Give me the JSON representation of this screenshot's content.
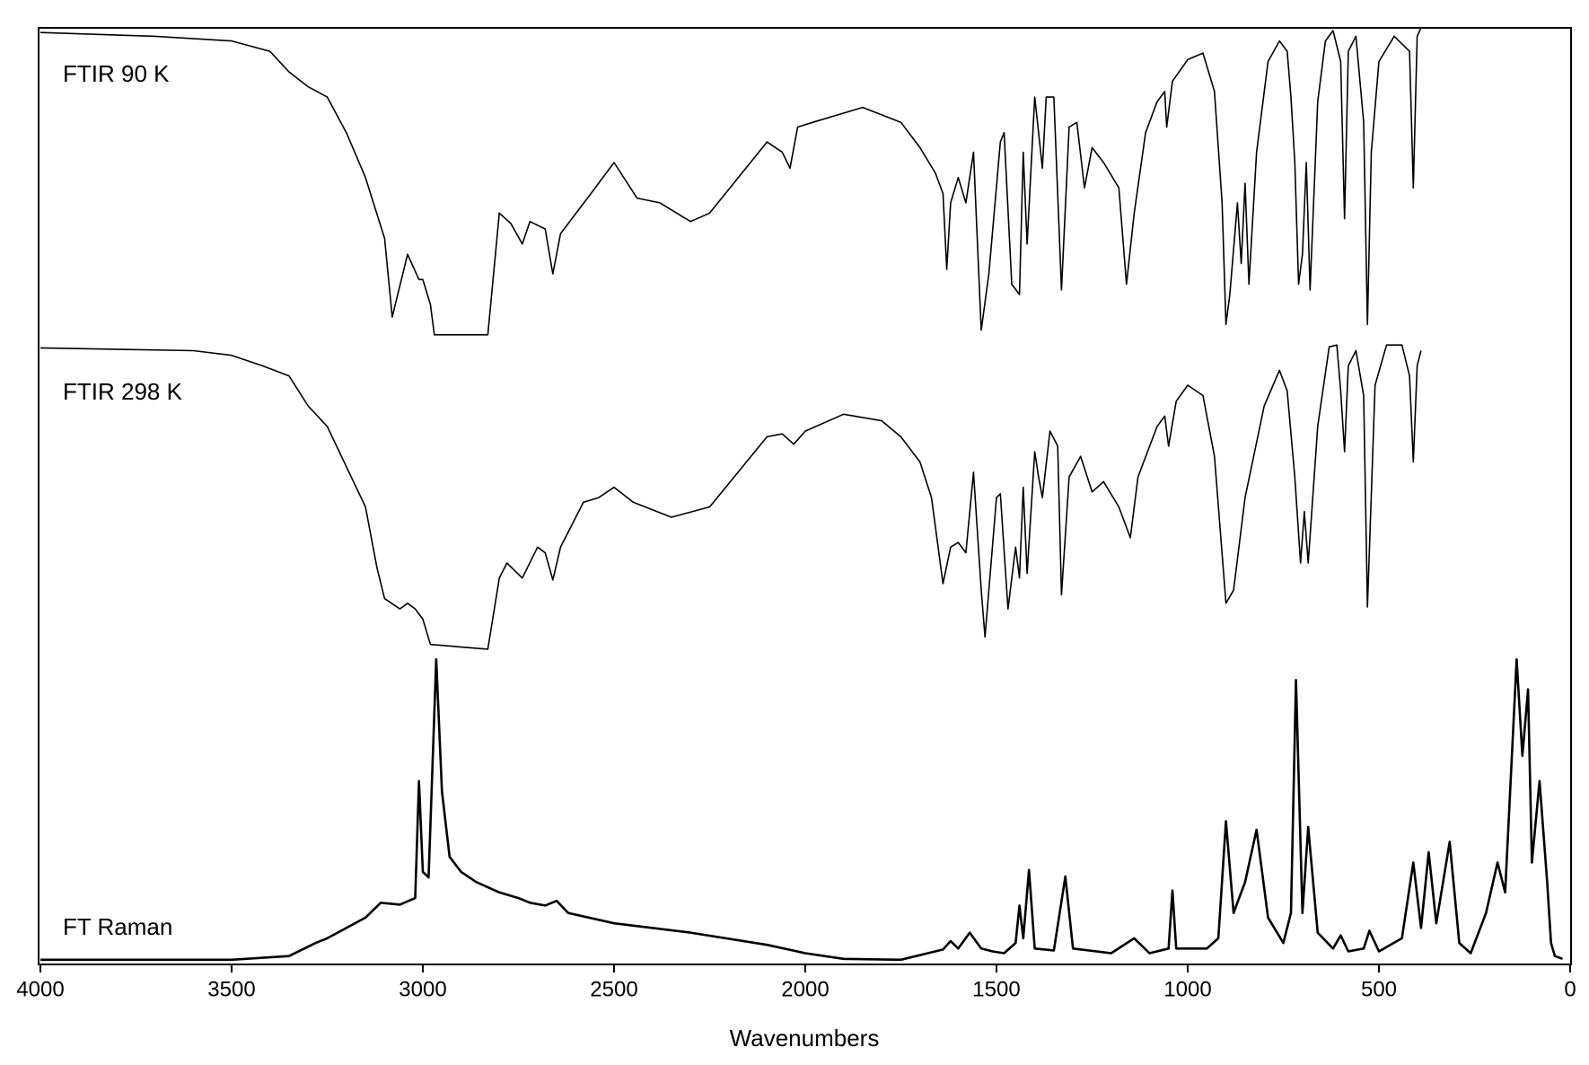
{
  "chart_data": {
    "type": "line",
    "x_label": "Wavenumbers",
    "xlim": [
      4000,
      0
    ],
    "xticks": [
      4000,
      3500,
      3000,
      2500,
      2000,
      1500,
      1000,
      500,
      0
    ],
    "series": [
      {
        "name": "FTIR 90 K",
        "color": "#000000",
        "x": [
          4000,
          3700,
          3500,
          3400,
          3350,
          3300,
          3250,
          3200,
          3150,
          3100,
          3080,
          3040,
          3010,
          3000,
          2980,
          2970,
          2830,
          2800,
          2770,
          2740,
          2720,
          2680,
          2660,
          2640,
          2560,
          2500,
          2440,
          2380,
          2300,
          2250,
          2100,
          2060,
          2040,
          2020,
          1980,
          1850,
          1750,
          1700,
          1660,
          1640,
          1630,
          1620,
          1600,
          1580,
          1560,
          1540,
          1520,
          1490,
          1480,
          1460,
          1440,
          1430,
          1420,
          1400,
          1390,
          1380,
          1370,
          1350,
          1330,
          1310,
          1290,
          1270,
          1250,
          1220,
          1180,
          1160,
          1140,
          1110,
          1080,
          1060,
          1055,
          1040,
          1000,
          960,
          930,
          910,
          900,
          890,
          870,
          860,
          850,
          840,
          820,
          790,
          760,
          740,
          730,
          720,
          710,
          700,
          690,
          680,
          660,
          640,
          620,
          600,
          590,
          580,
          560,
          540,
          530,
          520,
          500,
          460,
          420,
          410,
          400,
          390
        ],
        "values": [
          99.5,
          99.1,
          98.6,
          97.5,
          95.3,
          93.7,
          92.6,
          88.8,
          84.0,
          77.5,
          69.1,
          75.8,
          73.1,
          73.1,
          70.4,
          67.2,
          67.2,
          80.2,
          79.1,
          76.9,
          79.3,
          78.5,
          73.7,
          78.0,
          82.3,
          85.6,
          81.8,
          81.3,
          79.3,
          80.2,
          87.8,
          86.7,
          85.0,
          89.4,
          89.9,
          91.5,
          89.9,
          87.2,
          84.5,
          82.3,
          74.2,
          81.3,
          84.0,
          81.3,
          86.7,
          67.7,
          73.7,
          87.8,
          88.8,
          72.6,
          71.5,
          86.7,
          76.9,
          92.6,
          88.8,
          85.0,
          92.6,
          92.6,
          72.0,
          89.4,
          89.9,
          82.9,
          87.2,
          85.6,
          82.9,
          72.6,
          80.2,
          88.8,
          92.1,
          93.2,
          89.4,
          94.3,
          96.6,
          97.3,
          93.2,
          81.3,
          68.3,
          71.5,
          81.3,
          74.8,
          83.4,
          72.6,
          86.7,
          96.4,
          98.6,
          97.5,
          92.6,
          85.6,
          72.6,
          75.8,
          85.6,
          72.0,
          92.1,
          98.6,
          99.7,
          96.4,
          79.6,
          97.5,
          99.1,
          89.9,
          68.3,
          86.7,
          96.4,
          99.1,
          97.5,
          82.9,
          99.1,
          100
        ]
      },
      {
        "name": "FTIR 298 K",
        "color": "#000000",
        "x": [
          4000,
          3600,
          3500,
          3420,
          3350,
          3300,
          3250,
          3200,
          3150,
          3120,
          3100,
          3060,
          3040,
          3020,
          3000,
          2980,
          2830,
          2800,
          2780,
          2740,
          2700,
          2680,
          2660,
          2640,
          2580,
          2540,
          2500,
          2450,
          2350,
          2250,
          2100,
          2060,
          2030,
          2000,
          1900,
          1800,
          1750,
          1700,
          1670,
          1640,
          1620,
          1600,
          1580,
          1560,
          1540,
          1530,
          1500,
          1490,
          1470,
          1450,
          1440,
          1430,
          1420,
          1400,
          1390,
          1380,
          1360,
          1340,
          1330,
          1310,
          1280,
          1250,
          1220,
          1180,
          1150,
          1130,
          1080,
          1060,
          1050,
          1030,
          1000,
          960,
          930,
          900,
          880,
          850,
          800,
          760,
          740,
          720,
          705,
          695,
          685,
          660,
          630,
          610,
          600,
          590,
          580,
          560,
          540,
          530,
          510,
          480,
          440,
          420,
          410,
          400,
          390
        ],
        "values": [
          65.8,
          65.5,
          65.0,
          63.9,
          62.8,
          59.6,
          57.4,
          53.1,
          48.8,
          42.3,
          39.0,
          37.9,
          38.5,
          37.9,
          36.8,
          34.1,
          33.6,
          41.2,
          42.8,
          41.2,
          44.5,
          43.9,
          41.0,
          44.5,
          49.3,
          49.8,
          50.9,
          49.3,
          47.7,
          48.8,
          56.3,
          56.6,
          55.5,
          56.9,
          58.7,
          58.0,
          56.3,
          53.6,
          49.8,
          40.6,
          44.5,
          45.0,
          43.9,
          52.5,
          39.9,
          34.9,
          49.8,
          50.2,
          37.9,
          44.5,
          41.2,
          50.9,
          41.7,
          54.7,
          52.0,
          49.8,
          56.9,
          55.3,
          39.4,
          52.0,
          54.2,
          50.4,
          51.5,
          48.8,
          45.5,
          52.0,
          57.4,
          58.5,
          55.3,
          60.1,
          61.8,
          60.7,
          54.2,
          38.5,
          39.9,
          49.8,
          59.6,
          63.4,
          61.2,
          52.0,
          42.8,
          48.3,
          42.8,
          57.4,
          65.9,
          66.1,
          61.2,
          54.7,
          63.9,
          65.5,
          60.7,
          38.1,
          61.8,
          66.1,
          66.1,
          62.8,
          53.6,
          63.9,
          65.5
        ]
      },
      {
        "name": "FT Raman",
        "color": "#000000",
        "x": [
          4000,
          3500,
          3350,
          3280,
          3250,
          3200,
          3150,
          3110,
          3060,
          3020,
          3010,
          3000,
          2985,
          2965,
          2950,
          2930,
          2900,
          2860,
          2800,
          2750,
          2720,
          2680,
          2650,
          2620,
          2500,
          2300,
          2100,
          2000,
          1900,
          1750,
          1700,
          1640,
          1620,
          1600,
          1570,
          1540,
          1510,
          1480,
          1450,
          1440,
          1430,
          1415,
          1400,
          1350,
          1320,
          1300,
          1200,
          1140,
          1100,
          1050,
          1040,
          1030,
          950,
          920,
          900,
          880,
          850,
          820,
          790,
          750,
          730,
          717,
          700,
          685,
          660,
          620,
          600,
          580,
          540,
          525,
          500,
          440,
          410,
          390,
          370,
          350,
          315,
          290,
          260,
          220,
          190,
          170,
          140,
          125,
          110,
          100,
          80,
          60,
          50,
          40,
          20
        ],
        "values": [
          0.4,
          0.4,
          0.8,
          2.2,
          2.7,
          3.8,
          4.9,
          6.5,
          6.3,
          7.0,
          19.5,
          9.8,
          9.2,
          32.5,
          18.4,
          11.4,
          9.8,
          8.7,
          7.6,
          7.0,
          6.5,
          6.2,
          6.7,
          5.4,
          4.3,
          3.3,
          2.0,
          1.1,
          0.5,
          0.4,
          0.9,
          1.5,
          2.4,
          1.6,
          3.3,
          1.6,
          1.3,
          1.1,
          2.2,
          6.2,
          2.7,
          10.0,
          1.6,
          1.4,
          9.3,
          1.6,
          1.1,
          2.7,
          1.1,
          1.6,
          7.8,
          1.6,
          1.6,
          2.7,
          15.2,
          5.4,
          8.7,
          14.3,
          4.9,
          2.2,
          5.4,
          30.3,
          5.4,
          14.6,
          3.3,
          1.6,
          3.0,
          1.3,
          1.6,
          3.5,
          1.3,
          2.7,
          10.8,
          3.8,
          11.9,
          4.3,
          13.0,
          2.2,
          1.1,
          5.4,
          10.8,
          7.6,
          32.5,
          22.2,
          29.3,
          10.8,
          19.5,
          8.7,
          2.2,
          0.8,
          0.5
        ]
      }
    ]
  }
}
